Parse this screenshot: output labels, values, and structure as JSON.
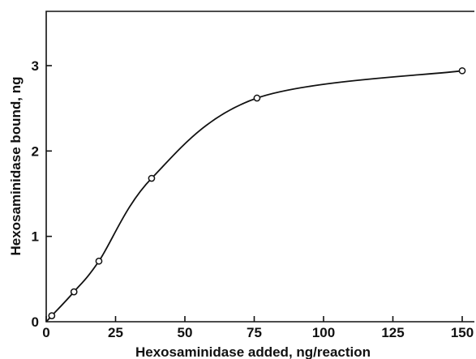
{
  "chart_data": {
    "type": "line",
    "title": "",
    "xlabel": "Hexosaminidase added, ng/reaction",
    "ylabel": "Hexosaminidase bound, ng",
    "xlim": [
      0,
      150
    ],
    "ylim": [
      0,
      3.6
    ],
    "xticks": [
      0,
      25,
      50,
      75,
      100,
      125,
      150
    ],
    "xtick_labels": [
      "0",
      "25",
      "50",
      "75",
      "100",
      "125",
      "150"
    ],
    "yticks": [
      0,
      1,
      2,
      3
    ],
    "ytick_labels": [
      "0",
      "1",
      "2",
      "3"
    ],
    "grid": false,
    "legend": "none",
    "series": [
      {
        "x": [
          2,
          10,
          19,
          38,
          76,
          150
        ],
        "values": [
          0.07,
          0.35,
          0.71,
          1.68,
          2.62,
          2.94
        ],
        "marker": "open-circle",
        "smooth": true
      }
    ]
  }
}
